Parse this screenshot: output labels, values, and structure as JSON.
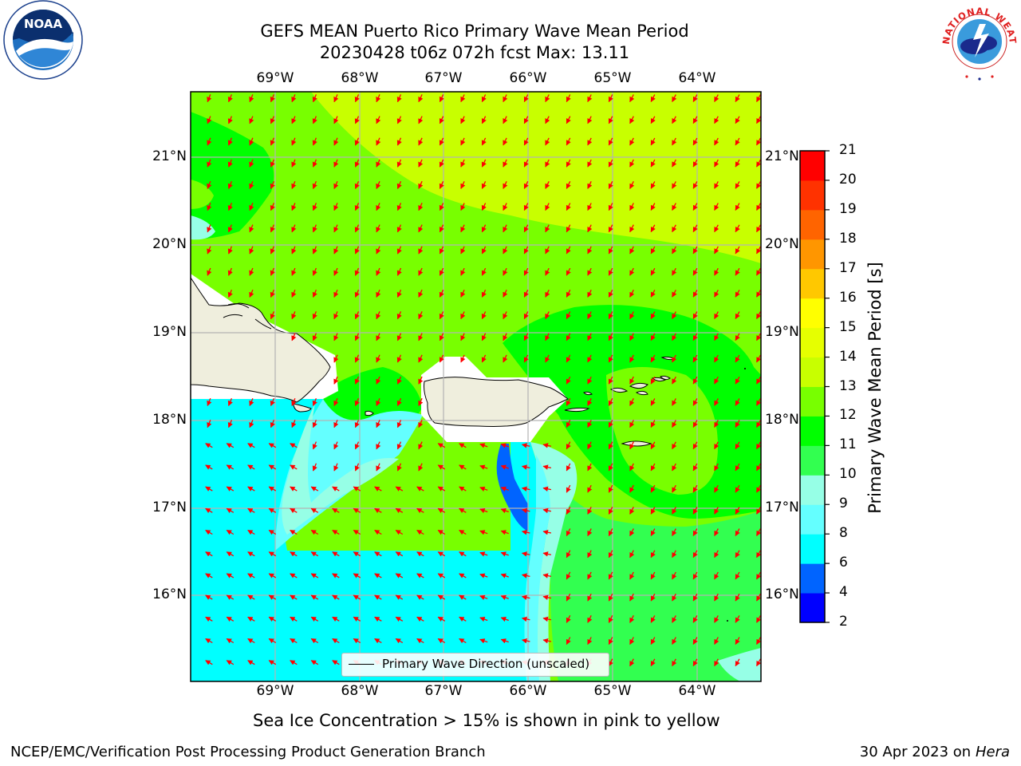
{
  "title_line1": "GEFS MEAN Puerto Rico Primary Wave Mean Period",
  "title_line2": "20230428 t06z 072h fcst   Max: 13.11",
  "lon_labels": [
    "69°W",
    "68°W",
    "67°W",
    "66°W",
    "65°W",
    "64°W"
  ],
  "lat_labels": [
    "21°N",
    "20°N",
    "19°N",
    "18°N",
    "17°N",
    "16°N"
  ],
  "colorbar": {
    "label": "Primary Wave Mean Period [s]",
    "ticks": [
      "2",
      "4",
      "6",
      "8",
      "9",
      "10",
      "11",
      "12",
      "13",
      "14",
      "15",
      "16",
      "17",
      "18",
      "19",
      "20",
      "21"
    ],
    "colors": [
      "#0000ff",
      "#0064ff",
      "#00ffff",
      "#64ffff",
      "#96ffe6",
      "#32ff50",
      "#00ff00",
      "#78ff00",
      "#c8ff00",
      "#e6ff00",
      "#ffff00",
      "#ffc800",
      "#ff9600",
      "#ff6400",
      "#ff3200",
      "#ff0000"
    ]
  },
  "legend_text": "Primary Wave Direction (unscaled)",
  "note": "Sea Ice Concentration > 15% is shown in pink to yellow",
  "footer_left": "NCEP/EMC/Verification Post Processing Product Generation Branch",
  "footer_right_date": "30 Apr 2023 on",
  "footer_right_host": "Hera",
  "logo_left": "NOAA",
  "logo_right_text": "NATIONAL WEATHER SERVICE",
  "land_color": "#efeedd",
  "arrow_color": "#ff0000"
}
